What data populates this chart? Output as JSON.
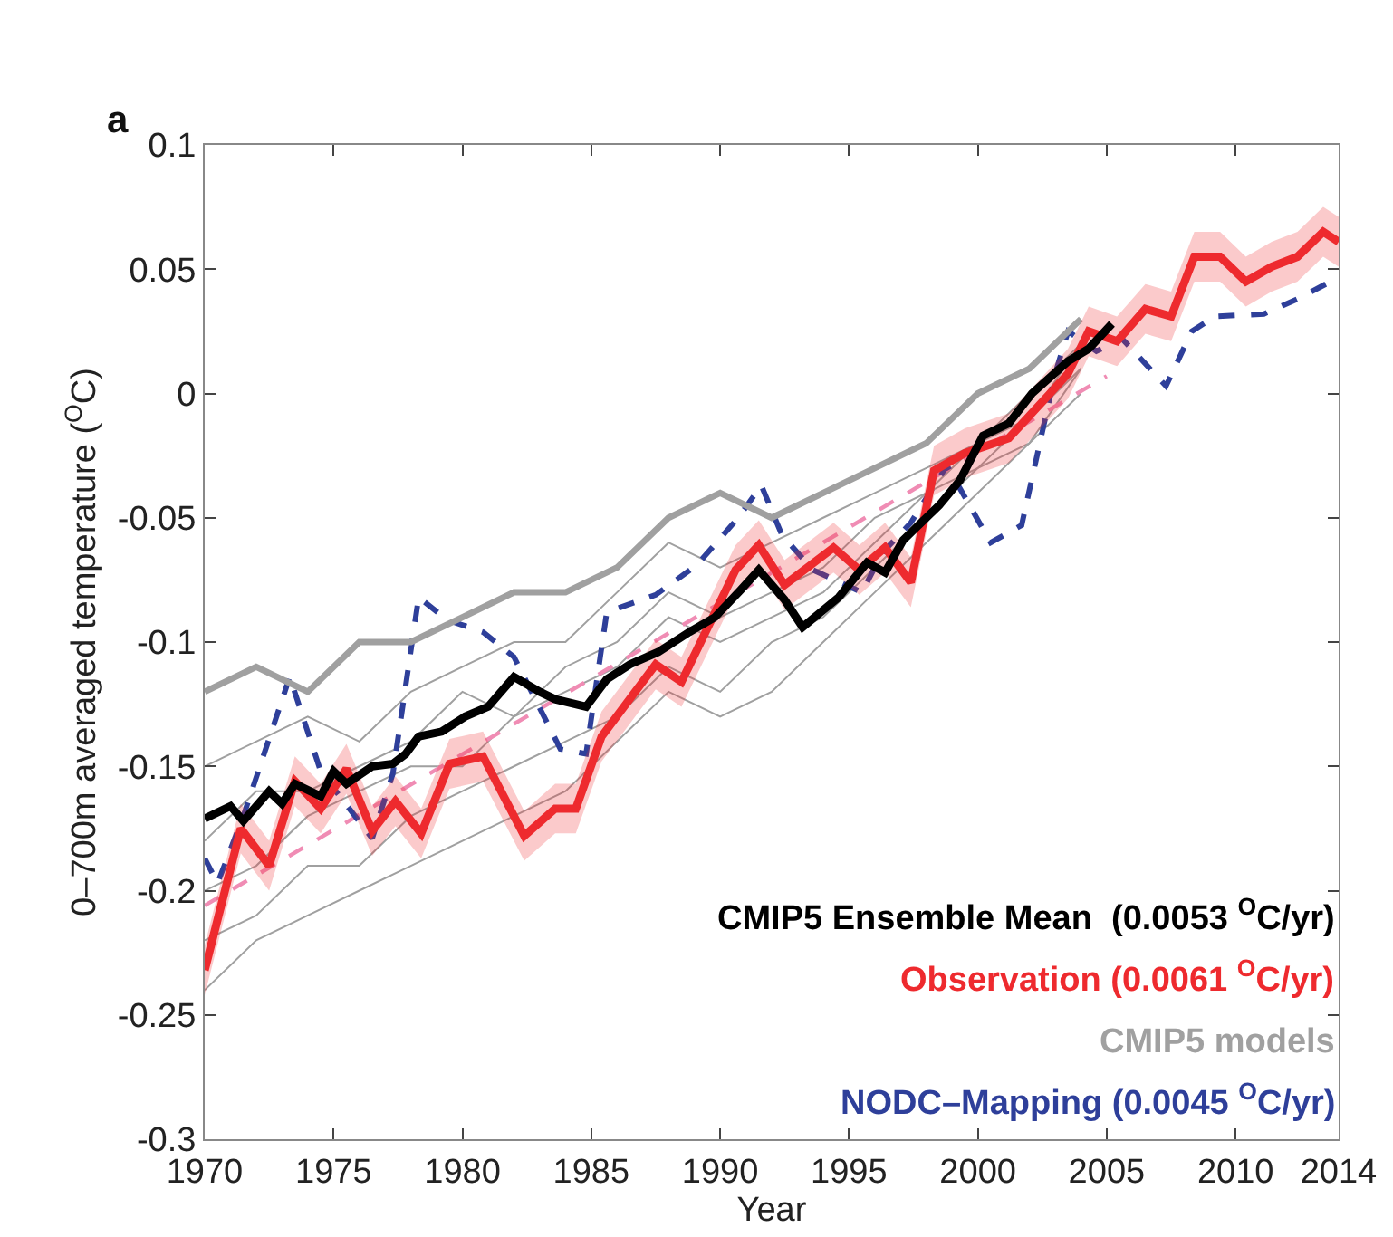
{
  "chart_data": {
    "type": "line",
    "xlabel": "Year",
    "ylabel": "0–700m averaged temperature ($^{O}$C)",
    "xlim": [
      1970,
      2014
    ],
    "xticks": [
      1970,
      1975,
      1980,
      1985,
      1990,
      1995,
      2000,
      2005,
      2010,
      2014
    ],
    "ylim": [
      -0.3,
      0.1
    ],
    "yticks": [
      -0.3,
      -0.25,
      -0.2,
      -0.15,
      -0.1,
      -0.05,
      0,
      0.05,
      0.1
    ],
    "grid": false,
    "legend": "bottom right",
    "marker": "none",
    "annotations": [
      "a"
    ],
    "series": [
      {
        "name": "CMIP5 Ensemble Mean  (0.0053 $^{O}$C/yr)",
        "color": "#000000",
        "line_style": "solid",
        "x": [
          1970,
          1971,
          1971.5,
          1972.5,
          1973,
          1973.5,
          1974.5,
          1975,
          1975.5,
          1976.5,
          1977.3,
          1977.8,
          1978.3,
          1979.2,
          1980.1,
          1981,
          1982,
          1983,
          1983.6,
          1984.8,
          1985.6,
          1986.5,
          1987.6,
          1988.8,
          1989.8,
          1990.8,
          1991.5,
          1992.5,
          1993.2,
          1994.6,
          1995.7,
          1996.4,
          1997.1,
          1998.5,
          1999.3,
          2000.2,
          2001.2,
          2002.1,
          2003.5,
          2004.3,
          2005.2
        ],
        "values": [
          -0.171,
          -0.166,
          -0.172,
          -0.16,
          -0.165,
          -0.157,
          -0.162,
          -0.152,
          -0.157,
          -0.15,
          -0.149,
          -0.145,
          -0.138,
          -0.136,
          -0.13,
          -0.126,
          -0.114,
          -0.12,
          -0.123,
          -0.126,
          -0.115,
          -0.109,
          -0.104,
          -0.096,
          -0.09,
          -0.079,
          -0.071,
          -0.083,
          -0.094,
          -0.082,
          -0.068,
          -0.072,
          -0.059,
          -0.045,
          -0.035,
          -0.017,
          -0.012,
          0.0,
          0.013,
          0.018,
          0.028
        ]
      },
      {
        "name": "Observation (0.0061 $^{O}$C/yr)",
        "color": "#ee2a2e",
        "line_style": "solid",
        "x": [
          1970,
          1971.4,
          1972.5,
          1973.5,
          1974.5,
          1975.5,
          1976.5,
          1977.4,
          1978.4,
          1979.5,
          1980.8,
          1982.4,
          1983.6,
          1984.4,
          1985.4,
          1987.5,
          1988.5,
          1990.6,
          1991.5,
          1992.5,
          1994.4,
          1995.4,
          1996.4,
          1997.4,
          1998.3,
          1999.5,
          2001.2,
          2002.8,
          2003.5,
          2004.3,
          2005.4,
          2006.5,
          2007.5,
          2008.4,
          2009.4,
          2010.4,
          2011.4,
          2012.4,
          2013.4,
          2014
        ],
        "values": [
          -0.232,
          -0.175,
          -0.19,
          -0.156,
          -0.167,
          -0.151,
          -0.176,
          -0.164,
          -0.177,
          -0.149,
          -0.146,
          -0.178,
          -0.167,
          -0.167,
          -0.138,
          -0.109,
          -0.116,
          -0.071,
          -0.061,
          -0.077,
          -0.062,
          -0.071,
          -0.062,
          -0.076,
          -0.031,
          -0.024,
          -0.018,
          0.0,
          0.008,
          0.025,
          0.021,
          0.034,
          0.031,
          0.055,
          0.055,
          0.045,
          0.051,
          0.055,
          0.065,
          0.061
        ],
        "lower": [
          -0.242,
          -0.185,
          -0.2,
          -0.166,
          -0.177,
          -0.161,
          -0.186,
          -0.174,
          -0.187,
          -0.159,
          -0.156,
          -0.188,
          -0.177,
          -0.177,
          -0.148,
          -0.119,
          -0.126,
          -0.081,
          -0.071,
          -0.087,
          -0.072,
          -0.081,
          -0.072,
          -0.086,
          -0.041,
          -0.034,
          -0.028,
          -0.01,
          -0.002,
          0.015,
          0.011,
          0.024,
          0.021,
          0.045,
          0.045,
          0.035,
          0.041,
          0.045,
          0.055,
          0.051
        ],
        "upper": [
          -0.222,
          -0.165,
          -0.18,
          -0.146,
          -0.157,
          -0.141,
          -0.166,
          -0.154,
          -0.167,
          -0.139,
          -0.136,
          -0.168,
          -0.157,
          -0.157,
          -0.128,
          -0.099,
          -0.106,
          -0.061,
          -0.051,
          -0.067,
          -0.052,
          -0.061,
          -0.052,
          -0.066,
          -0.021,
          -0.014,
          -0.008,
          0.01,
          0.018,
          0.035,
          0.031,
          0.044,
          0.041,
          0.065,
          0.065,
          0.055,
          0.061,
          0.065,
          0.075,
          0.071
        ]
      },
      {
        "name": "CMIP5 models",
        "color": "#a0a0a0",
        "line_style": "solid",
        "x": [
          1970,
          1972,
          1974,
          1976,
          1978,
          1980,
          1982,
          1984,
          1986,
          1988,
          1990,
          1992,
          1994,
          1996,
          1998,
          2000,
          2002,
          2004
        ],
        "values": [
          -0.12,
          -0.11,
          -0.12,
          -0.1,
          -0.1,
          -0.09,
          -0.08,
          -0.08,
          -0.07,
          -0.05,
          -0.04,
          -0.05,
          -0.04,
          -0.03,
          -0.02,
          0.0,
          0.01,
          0.03
        ]
      },
      {
        "name": "NODC–Mapping (0.0045 $^{O}$C/yr)",
        "color": "#2e3f9a",
        "line_style": "dashed",
        "x": [
          1970,
          1970.5,
          1971.5,
          1973.3,
          1974.5,
          1976.5,
          1977.3,
          1978.3,
          1979.4,
          1980.8,
          1982,
          1983.8,
          1984.8,
          1985.6,
          1987.5,
          1989.1,
          1990.7,
          1991.6,
          1992.4,
          1993.6,
          1995.5,
          1996.3,
          1997.4,
          1998.8,
          2000.5,
          2001.7,
          2003,
          2003.5,
          2004.6,
          2005.6,
          2007.3,
          2008.3,
          2009.2,
          2011.1,
          2012.4,
          2013.5,
          2014
        ],
        "values": [
          -0.187,
          -0.197,
          -0.17,
          -0.114,
          -0.152,
          -0.179,
          -0.153,
          -0.082,
          -0.091,
          -0.096,
          -0.106,
          -0.143,
          -0.145,
          -0.088,
          -0.081,
          -0.069,
          -0.05,
          -0.037,
          -0.057,
          -0.071,
          -0.08,
          -0.064,
          -0.052,
          -0.029,
          -0.06,
          -0.053,
          0.008,
          0.025,
          0.017,
          0.022,
          0.003,
          0.025,
          0.031,
          0.032,
          0.038,
          0.044,
          0.041
        ]
      },
      {
        "color": "#a0a0a0",
        "line_style": "solid",
        "x": [
          1970,
          1972,
          1974,
          1976,
          1978,
          1980,
          1982,
          1984,
          1986,
          1988,
          1990,
          1992,
          1994,
          1996,
          1998,
          2000,
          2002,
          2004
        ],
        "values": [
          -0.15,
          -0.14,
          -0.13,
          -0.14,
          -0.12,
          -0.11,
          -0.1,
          -0.1,
          -0.08,
          -0.06,
          -0.07,
          -0.06,
          -0.05,
          -0.04,
          -0.03,
          -0.02,
          0.0,
          0.02
        ]
      },
      {
        "color": "#a0a0a0",
        "line_style": "solid",
        "x": [
          1970,
          1972,
          1974,
          1976,
          1978,
          1980,
          1982,
          1984,
          1986,
          1988,
          1990,
          1992,
          1994,
          1996,
          1998,
          2000,
          2002,
          2004
        ],
        "values": [
          -0.18,
          -0.16,
          -0.16,
          -0.15,
          -0.14,
          -0.12,
          -0.13,
          -0.11,
          -0.1,
          -0.08,
          -0.09,
          -0.08,
          -0.07,
          -0.05,
          -0.04,
          -0.02,
          -0.01,
          0.02
        ]
      },
      {
        "color": "#a0a0a0",
        "line_style": "solid",
        "x": [
          1970,
          1972,
          1974,
          1976,
          1978,
          1980,
          1982,
          1984,
          1986,
          1988,
          1990,
          1992,
          1994,
          1996,
          1998,
          2000,
          2002,
          2004
        ],
        "values": [
          -0.2,
          -0.19,
          -0.17,
          -0.16,
          -0.15,
          -0.15,
          -0.13,
          -0.12,
          -0.11,
          -0.09,
          -0.1,
          -0.09,
          -0.08,
          -0.06,
          -0.04,
          -0.03,
          -0.01,
          0.01
        ]
      },
      {
        "color": "#a0a0a0",
        "line_style": "solid",
        "x": [
          1970,
          1972,
          1974,
          1976,
          1978,
          1980,
          1982,
          1984,
          1986,
          1988,
          1990,
          1992,
          1994,
          1996,
          1998,
          2000,
          2002,
          2004
        ],
        "values": [
          -0.22,
          -0.21,
          -0.19,
          -0.19,
          -0.17,
          -0.16,
          -0.15,
          -0.14,
          -0.13,
          -0.11,
          -0.12,
          -0.1,
          -0.09,
          -0.07,
          -0.05,
          -0.03,
          -0.02,
          0.0
        ]
      },
      {
        "color": "#a0a0a0",
        "line_style": "solid",
        "x": [
          1970,
          1972,
          1974,
          1976,
          1978,
          1980,
          1982,
          1984,
          1986,
          1988,
          1990,
          1992,
          1994,
          1996,
          1998,
          2000,
          2002,
          2004
        ],
        "values": [
          -0.24,
          -0.22,
          -0.21,
          -0.2,
          -0.19,
          -0.18,
          -0.17,
          -0.16,
          -0.14,
          -0.12,
          -0.13,
          -0.12,
          -0.1,
          -0.08,
          -0.06,
          -0.04,
          -0.02,
          0.01
        ]
      },
      {
        "color": "#f08cb4",
        "line_style": "dashed",
        "x": [
          1970,
          2005
        ],
        "values": [
          -0.206,
          0.007
        ]
      }
    ]
  }
}
